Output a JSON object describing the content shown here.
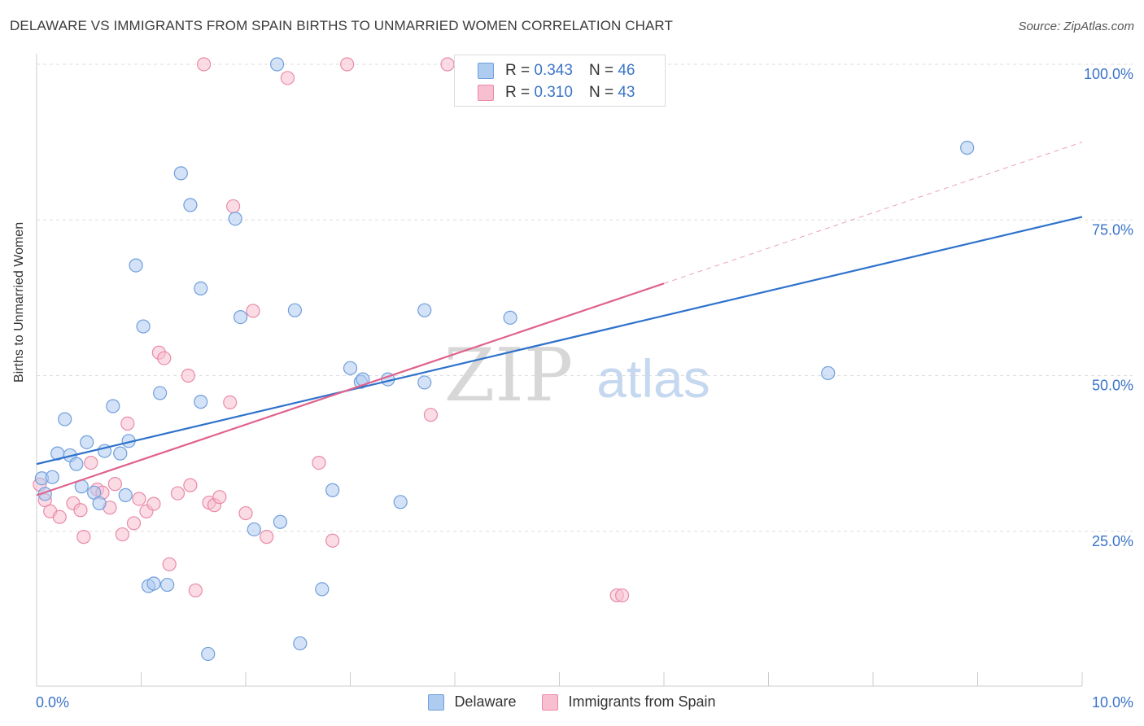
{
  "title": "DELAWARE VS IMMIGRANTS FROM SPAIN BIRTHS TO UNMARRIED WOMEN CORRELATION CHART",
  "source": "Source: ZipAtlas.com",
  "watermark": {
    "zip": "ZIP",
    "atlas": "atlas"
  },
  "legend_top": {
    "rows": [
      {
        "r_label": "R = ",
        "r_value": "0.343",
        "n_label": "N = ",
        "n_value": "46"
      },
      {
        "r_label": "R = ",
        "r_value": "0.310",
        "n_label": "N = ",
        "n_value": "43"
      }
    ]
  },
  "legend_bottom": {
    "items": [
      "Delaware",
      "Immigrants from Spain"
    ]
  },
  "colors": {
    "blue_fill": "#aecbf0",
    "blue_stroke": "#6f9fdc",
    "blue_line": "#2f72cc",
    "pink_fill": "#f7bfd0",
    "pink_stroke": "#e98aa8",
    "pink_line": "#e0628c",
    "grid": "#dddddd",
    "tick_label": "#3b74c8"
  },
  "chart_data": {
    "type": "scatter",
    "title": "DELAWARE VS IMMIGRANTS FROM SPAIN BIRTHS TO UNMARRIED WOMEN CORRELATION CHART",
    "xlabel": "",
    "ylabel": "Births to Unmarried Women",
    "xlim": [
      0,
      10
    ],
    "ylim": [
      0,
      100
    ],
    "x_tick_labels": [
      "0.0%",
      "10.0%"
    ],
    "y_tick_labels": [
      "25.0%",
      "50.0%",
      "75.0%",
      "100.0%"
    ],
    "y_ticks": [
      25,
      50,
      75,
      100
    ],
    "grid": true,
    "legend_position": "bottom",
    "series": [
      {
        "name": "Delaware",
        "points": [
          [
            0.05,
            33.5
          ],
          [
            0.08,
            31.0
          ],
          [
            0.15,
            33.7
          ],
          [
            0.2,
            37.5
          ],
          [
            0.27,
            43.0
          ],
          [
            0.32,
            37.2
          ],
          [
            0.38,
            35.8
          ],
          [
            0.43,
            32.2
          ],
          [
            0.48,
            39.3
          ],
          [
            0.55,
            31.2
          ],
          [
            0.6,
            29.5
          ],
          [
            0.65,
            37.9
          ],
          [
            0.73,
            45.1
          ],
          [
            0.8,
            37.5
          ],
          [
            0.85,
            30.8
          ],
          [
            0.88,
            39.5
          ],
          [
            0.95,
            67.7
          ],
          [
            1.02,
            57.9
          ],
          [
            1.07,
            16.2
          ],
          [
            1.12,
            16.6
          ],
          [
            1.18,
            47.2
          ],
          [
            1.25,
            16.4
          ],
          [
            1.38,
            82.5
          ],
          [
            1.47,
            77.4
          ],
          [
            1.57,
            64.0
          ],
          [
            1.57,
            45.8
          ],
          [
            1.64,
            5.3
          ],
          [
            1.9,
            75.2
          ],
          [
            1.95,
            59.4
          ],
          [
            2.08,
            25.3
          ],
          [
            2.3,
            100.0
          ],
          [
            2.33,
            26.5
          ],
          [
            2.47,
            60.5
          ],
          [
            2.52,
            7.0
          ],
          [
            2.73,
            15.7
          ],
          [
            2.83,
            31.6
          ],
          [
            3.0,
            51.2
          ],
          [
            3.1,
            49.0
          ],
          [
            3.12,
            49.4
          ],
          [
            3.36,
            49.4
          ],
          [
            3.48,
            29.7
          ],
          [
            3.71,
            48.9
          ],
          [
            3.71,
            60.5
          ],
          [
            4.53,
            59.3
          ],
          [
            7.57,
            50.4
          ],
          [
            8.9,
            86.6
          ]
        ]
      },
      {
        "name": "Immigrants from Spain",
        "points": [
          [
            0.03,
            32.5
          ],
          [
            0.08,
            30.0
          ],
          [
            0.13,
            28.2
          ],
          [
            0.22,
            27.3
          ],
          [
            0.35,
            29.5
          ],
          [
            0.42,
            28.4
          ],
          [
            0.45,
            24.1
          ],
          [
            0.52,
            36.0
          ],
          [
            0.58,
            31.7
          ],
          [
            0.63,
            31.2
          ],
          [
            0.7,
            28.8
          ],
          [
            0.75,
            32.6
          ],
          [
            0.82,
            24.5
          ],
          [
            0.87,
            42.3
          ],
          [
            0.93,
            26.3
          ],
          [
            0.98,
            30.2
          ],
          [
            1.05,
            28.2
          ],
          [
            1.12,
            29.4
          ],
          [
            1.17,
            53.7
          ],
          [
            1.22,
            52.8
          ],
          [
            1.27,
            19.7
          ],
          [
            1.35,
            31.1
          ],
          [
            1.47,
            32.4
          ],
          [
            1.52,
            15.5
          ],
          [
            1.6,
            100.0
          ],
          [
            1.65,
            29.6
          ],
          [
            1.7,
            29.2
          ],
          [
            1.75,
            30.5
          ],
          [
            1.85,
            45.7
          ],
          [
            1.88,
            77.2
          ],
          [
            2.0,
            27.9
          ],
          [
            2.07,
            60.4
          ],
          [
            2.2,
            24.1
          ],
          [
            2.4,
            97.8
          ],
          [
            2.7,
            36.0
          ],
          [
            2.83,
            23.5
          ],
          [
            2.97,
            100.0
          ],
          [
            3.77,
            43.7
          ],
          [
            3.93,
            100.0
          ],
          [
            5.55,
            14.7
          ],
          [
            5.6,
            14.7
          ],
          [
            4.8,
            100.0
          ],
          [
            1.45,
            50.0
          ]
        ]
      }
    ],
    "trend_lines": [
      {
        "name": "Delaware",
        "x": [
          0,
          10
        ],
        "y": [
          35.8,
          75.5
        ],
        "style": "solid"
      },
      {
        "name": "Immigrants from Spain",
        "x": [
          0,
          6
        ],
        "y": [
          30.8,
          64.8
        ],
        "style": "solid"
      },
      {
        "name": "Immigrants from Spain",
        "x": [
          6,
          10
        ],
        "y": [
          64.8,
          87.5
        ],
        "style": "dashed"
      }
    ]
  }
}
